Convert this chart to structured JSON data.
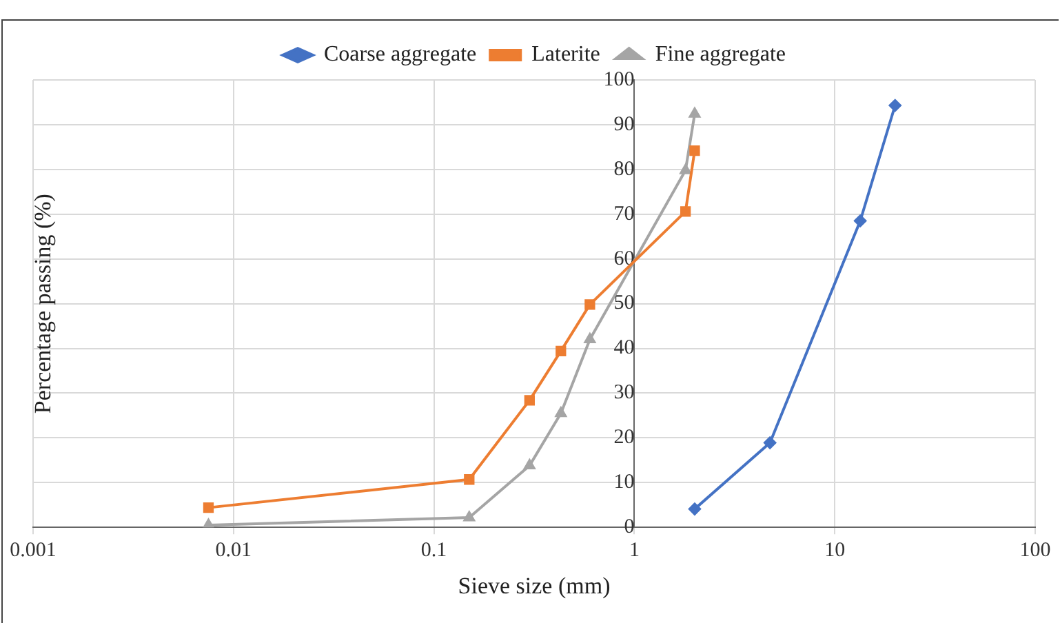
{
  "chart_data": {
    "type": "line",
    "xlabel": "Sieve size (mm)",
    "ylabel": "Percentage passing (%)",
    "log": "x",
    "grid": true,
    "legend": "top",
    "line_style": "solid",
    "xlim": [
      0.001,
      100
    ],
    "xticks": [
      0.001,
      0.01,
      0.1,
      1,
      10,
      100
    ],
    "ylim": [
      0,
      100
    ],
    "yticks": [
      0,
      10,
      20,
      30,
      40,
      50,
      60,
      70,
      80,
      90,
      100
    ],
    "series": [
      {
        "name": "Coarse aggregate",
        "color": "#4472c4",
        "marker": "diamond",
        "x": [
          2,
          4.75,
          13.4,
          20
        ],
        "values": [
          4.1,
          18.9,
          68.5,
          94.3
        ]
      },
      {
        "name": "Laterite",
        "color": "#ed7d31",
        "marker": "square",
        "x": [
          0.0075,
          0.15,
          0.3,
          0.43,
          0.6,
          1.8,
          2
        ],
        "values": [
          4.4,
          10.7,
          28.4,
          39.4,
          49.8,
          70.6,
          84.2
        ]
      },
      {
        "name": "Fine aggregate",
        "color": "#a5a5a5",
        "marker": "triangle",
        "x": [
          0.0075,
          0.15,
          0.3,
          0.43,
          0.6,
          1.8,
          2
        ],
        "values": [
          0.5,
          2.2,
          13.8,
          25.5,
          42,
          79.8,
          92.4
        ]
      }
    ]
  }
}
